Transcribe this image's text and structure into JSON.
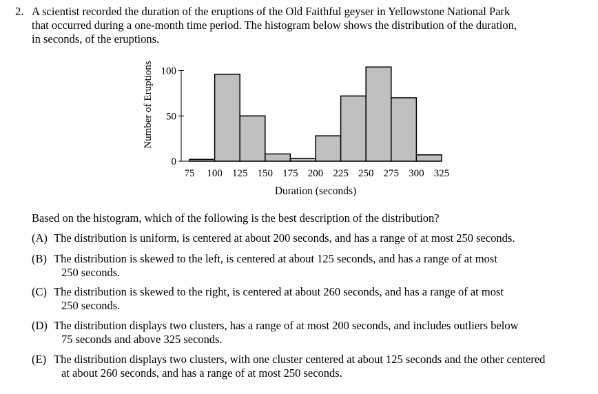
{
  "question": {
    "number": "2.",
    "stem_lines": [
      "A scientist recorded the duration of the eruptions of the Old Faithful geyser in Yellowstone National Park",
      "that occurred during a one-month time period. The histogram below shows the distribution of the duration,",
      "in seconds, of the eruptions."
    ],
    "prompt": "Based on the histogram, which of the following is the best description of the distribution?",
    "choices": [
      {
        "letter": "(A)",
        "line1": "The distribution is uniform, is centered at about 200 seconds, and has a range of at most 250 seconds.",
        "line2": ""
      },
      {
        "letter": "(B)",
        "line1": "The distribution is skewed to the left, is centered at about 125 seconds, and has a range of at most",
        "line2": "250 seconds."
      },
      {
        "letter": "(C)",
        "line1": "The distribution is skewed to the right, is centered at about 260 seconds, and has a range of at most",
        "line2": "250 seconds."
      },
      {
        "letter": "(D)",
        "line1": "The distribution displays two clusters, has a range of at most 200 seconds, and includes outliers below",
        "line2": "75 seconds and above 325 seconds."
      },
      {
        "letter": "(E)",
        "line1": "The distribution displays two clusters, with one cluster centered at about 125 seconds and the other centered",
        "line2": "at about 260 seconds, and has a range of at most 250 seconds."
      }
    ]
  },
  "chart_data": {
    "type": "bar",
    "title": "",
    "xlabel": "Duration (seconds)",
    "ylabel": "Number of Eruptions",
    "bin_edges": [
      75,
      100,
      125,
      150,
      175,
      200,
      225,
      250,
      275,
      300,
      325
    ],
    "x_tick_labels": [
      "75",
      "100",
      "125",
      "150",
      "175",
      "200",
      "225",
      "250",
      "275",
      "300",
      "325"
    ],
    "values": [
      2,
      96,
      50,
      8,
      3,
      28,
      72,
      104,
      70,
      7
    ],
    "y_ticks": [
      0,
      50,
      100
    ],
    "y_tick_labels": [
      "0",
      "50",
      "100"
    ],
    "ylim": [
      0,
      108
    ],
    "bar_color": "#bfbfbf",
    "edge_color": "#000000"
  }
}
